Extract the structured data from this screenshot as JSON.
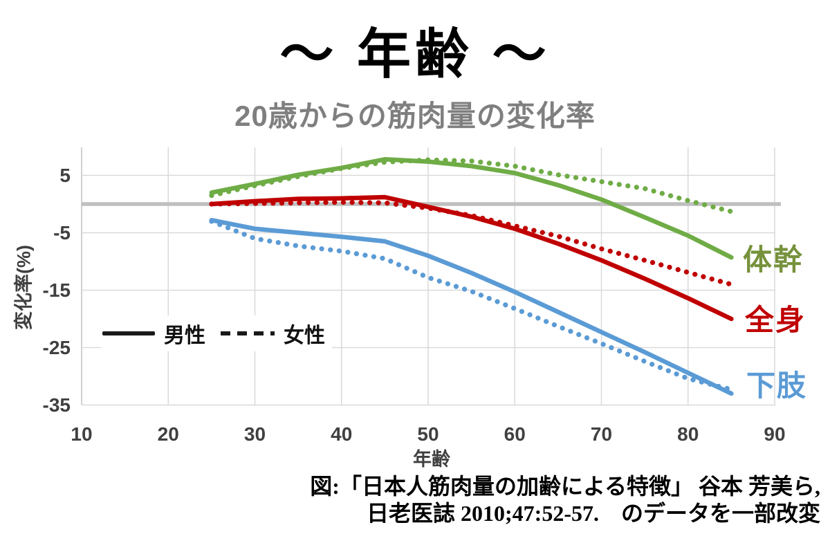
{
  "title": "～ 年齢 ～",
  "subtitle": "20歳からの筋肉量の変化率",
  "legend": {
    "male_label": "男性",
    "female_label": "女性"
  },
  "series_labels": {
    "trunk": "体幹",
    "whole_body": "全身",
    "lower_limbs": "下肢"
  },
  "citation": {
    "line1": "図:「日本人筋肉量の加齢による特徴」 谷本 芳美ら,",
    "line2": "日老医誌 2010;47:52-57.　のデータを一部改変"
  },
  "colors": {
    "trunk": "#6FAC46",
    "whole_body": "#C00000",
    "lower_limbs": "#5B9BD5",
    "trunk_label": "#76923C",
    "zero_line": "#BFBFBF",
    "grid": "#D9D9D9",
    "axis_line": "#BFBFBF",
    "subtitle_text": "#7F7F7F",
    "tick_text": "#404040"
  },
  "chart_data": {
    "type": "line",
    "title": "20歳からの筋肉量の変化率",
    "xlabel": "年齢",
    "ylabel": "変化率(%)",
    "xlim": [
      10,
      90
    ],
    "ylim": [
      -35,
      10
    ],
    "x_ticks": [
      10,
      20,
      30,
      40,
      50,
      60,
      70,
      80,
      90
    ],
    "y_ticks": [
      5,
      -5,
      -15,
      -25,
      -35
    ],
    "grid": true,
    "zero_line": 0,
    "legend_position": "inside-left",
    "x": [
      25,
      30,
      35,
      40,
      45,
      50,
      55,
      60,
      65,
      70,
      75,
      80,
      85
    ],
    "series": [
      {
        "id": "trunk-male",
        "name": "体幹 男性",
        "style": "solid",
        "color": "#6FAC46",
        "values": [
          2.0,
          3.5,
          5.1,
          6.3,
          7.8,
          7.4,
          6.6,
          5.4,
          3.3,
          0.8,
          -2.3,
          -5.5,
          -9.3
        ]
      },
      {
        "id": "trunk-female",
        "name": "体幹 女性",
        "style": "dotted",
        "color": "#6FAC46",
        "values": [
          1.5,
          3.2,
          4.8,
          6.2,
          7.3,
          7.7,
          7.5,
          6.6,
          5.1,
          3.9,
          2.7,
          0.6,
          -1.3
        ]
      },
      {
        "id": "whole-body-male",
        "name": "全身 男性",
        "style": "solid",
        "color": "#C00000",
        "values": [
          0.0,
          0.5,
          0.9,
          1.0,
          1.2,
          -0.5,
          -2.2,
          -4.3,
          -6.9,
          -9.8,
          -13.0,
          -16.4,
          -20.0
        ]
      },
      {
        "id": "whole-body-female",
        "name": "全身 女性",
        "style": "dotted",
        "color": "#C00000",
        "values": [
          0.0,
          0.1,
          0.2,
          0.3,
          0.2,
          -0.7,
          -2.0,
          -3.8,
          -5.6,
          -7.8,
          -9.8,
          -11.9,
          -14.0
        ]
      },
      {
        "id": "lower-limbs-male",
        "name": "下肢 男性",
        "style": "solid",
        "color": "#5B9BD5",
        "values": [
          -2.8,
          -4.3,
          -5.0,
          -5.7,
          -6.5,
          -9.0,
          -12.0,
          -15.3,
          -18.8,
          -22.3,
          -25.8,
          -29.4,
          -33.0
        ]
      },
      {
        "id": "lower-limbs-female",
        "name": "下肢 女性",
        "style": "dotted",
        "color": "#5B9BD5",
        "values": [
          -3.0,
          -6.0,
          -7.3,
          -8.2,
          -9.5,
          -12.8,
          -15.2,
          -18.2,
          -21.3,
          -24.3,
          -27.4,
          -30.4,
          -32.3
        ]
      }
    ]
  }
}
